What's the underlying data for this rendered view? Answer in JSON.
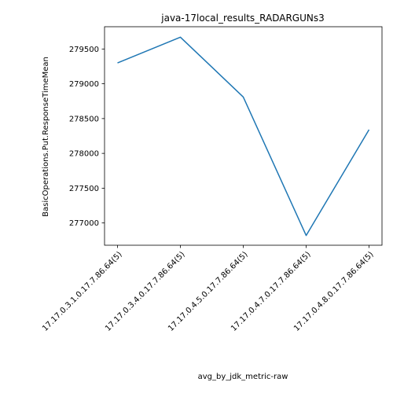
{
  "chart_data": {
    "type": "line",
    "title": "java-17local_results_RADARGUNs3",
    "xlabel": "avg_by_jdk_metric-raw",
    "ylabel": "BasicOperations.Put.ResponseTimeMean",
    "categories": [
      "17.17.0.3.1.0.17.7.86.64(5)",
      "17.17.0.3.4.0.17.7.86.64(5)",
      "17.17.0.4.5.0.17.7.86.64(5)",
      "17.17.0.4.7.0.17.7.86.64(5)",
      "17.17.0.4.8.0.17.7.86.64(5)"
    ],
    "series": [
      {
        "values": [
          279300,
          279670,
          278810,
          276820,
          278340
        ]
      }
    ],
    "yticks": [
      277000,
      277500,
      278000,
      278500,
      279000,
      279500
    ],
    "ylim": [
      276680,
      279820
    ],
    "grid": false,
    "line_color": "#1f77b4"
  }
}
